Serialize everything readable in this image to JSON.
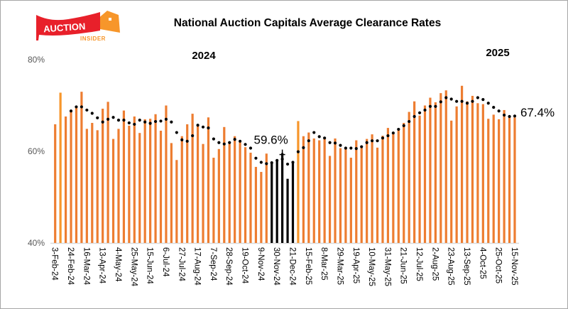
{
  "logo": {
    "word1": "AUCTION",
    "word2": "INSIDER",
    "flag_color": "#E8202A",
    "house_color": "#F7962A"
  },
  "chart_data": {
    "type": "bar",
    "title": "National Auction Capitals Average Clearance Rates",
    "year_labels": [
      "2024",
      "2025"
    ],
    "ylabel": "",
    "xlabel": "",
    "ylim": [
      40,
      80
    ],
    "y_ticks": [
      "40%",
      "60%",
      "80%"
    ],
    "grid": false,
    "tick_labels": [
      "3-Feb-24",
      "24-Feb-24",
      "16-Mar-24",
      "13-Apr-24",
      "4-May-24",
      "25-May-24",
      "15-Jun-24",
      "6-Jul-24",
      "27-Jul-24",
      "17-Aug-24",
      "7-Sep-24",
      "28-Sep-24",
      "19-Oct-24",
      "9-Nov-24",
      "30-Nov-24",
      "21-Dec-24",
      "15-Feb-25",
      "8-Mar-25",
      "29-Mar-25",
      "19-Apr-25",
      "10-May-25",
      "31-May-25",
      "21-Jun-25",
      "12-Jul-25",
      "2-Aug-25",
      "23-Aug-25",
      "13-Sep-25",
      "4-Oct-25",
      "25-Oct-25",
      "15-Nov-25"
    ],
    "tick_every_n_bars": 3,
    "series": [
      {
        "type": "bar",
        "values": [
          65.9,
          72.8,
          67.6,
          68.6,
          69.6,
          73.0,
          64.9,
          66.2,
          64.6,
          69.3,
          70.8,
          62.7,
          64.9,
          68.9,
          65.6,
          67.6,
          64.0,
          67.0,
          67.1,
          68.1,
          64.5,
          70.0,
          61.8,
          58.1,
          63.3,
          65.9,
          68.2,
          65.6,
          61.6,
          67.4,
          58.6,
          60.5,
          65.3,
          61.6,
          63.3,
          62.0,
          60.9,
          59.7,
          56.6,
          55.5,
          59.5,
          57.7,
          58.0,
          59.6,
          54.0,
          57.5,
          66.6,
          63.3,
          64.1,
          62.8,
          62.4,
          62.8,
          59.0,
          62.8,
          60.7,
          60.7,
          58.6,
          62.4,
          60.8,
          62.7,
          63.7,
          60.8,
          63.4,
          65.1,
          64.2,
          64.9,
          66.2,
          68.6,
          70.9,
          67.8,
          70.0,
          71.7,
          70.7,
          72.7,
          73.3,
          66.7,
          69.8,
          74.3,
          70.9,
          72.1,
          70.5,
          70.3,
          67.1,
          68.0,
          67.0,
          69.0,
          67.5,
          67.4
        ],
        "color": "#ED7D31",
        "highlight_color": "#F7962A",
        "highlight_bars": [
          1,
          46
        ],
        "holiday_color": "#000000",
        "holiday_bars": [
          41,
          42,
          43,
          44,
          45
        ]
      },
      {
        "type": "line",
        "style": "dotted",
        "color": "#000000",
        "values": [
          null,
          null,
          null,
          68.8,
          69.7,
          69.7,
          69.0,
          68.3,
          67.3,
          66.4,
          67.0,
          67.4,
          66.8,
          66.8,
          66.2,
          65.9,
          66.8,
          66.4,
          66.1,
          66.5,
          66.6,
          67.0,
          66.4,
          64.1,
          62.5,
          62.2,
          63.4,
          65.7,
          65.3,
          65.1,
          62.7,
          61.9,
          61.6,
          61.9,
          62.6,
          62.2,
          61.5,
          60.7,
          58.5,
          57.6,
          57.3,
          57.5,
          58.0,
          58.3,
          57.2,
          57.6,
          59.9,
          60.8,
          62.3,
          64.1,
          63.2,
          62.9,
          61.9,
          61.8,
          61.3,
          60.7,
          60.7,
          60.6,
          61.0,
          61.9,
          62.3,
          62.3,
          62.9,
          63.4,
          64.0,
          64.8,
          65.6,
          66.5,
          67.6,
          68.4,
          69.0,
          69.8,
          69.8,
          70.8,
          71.7,
          71.4,
          70.9,
          70.9,
          70.5,
          70.9,
          71.7,
          71.3,
          70.5,
          69.6,
          68.8,
          67.9,
          67.6,
          67.7
        ]
      }
    ],
    "annotations": [
      {
        "text": "59.6%",
        "bar": 43
      },
      {
        "text": "67.4%",
        "bar": 87
      }
    ]
  }
}
